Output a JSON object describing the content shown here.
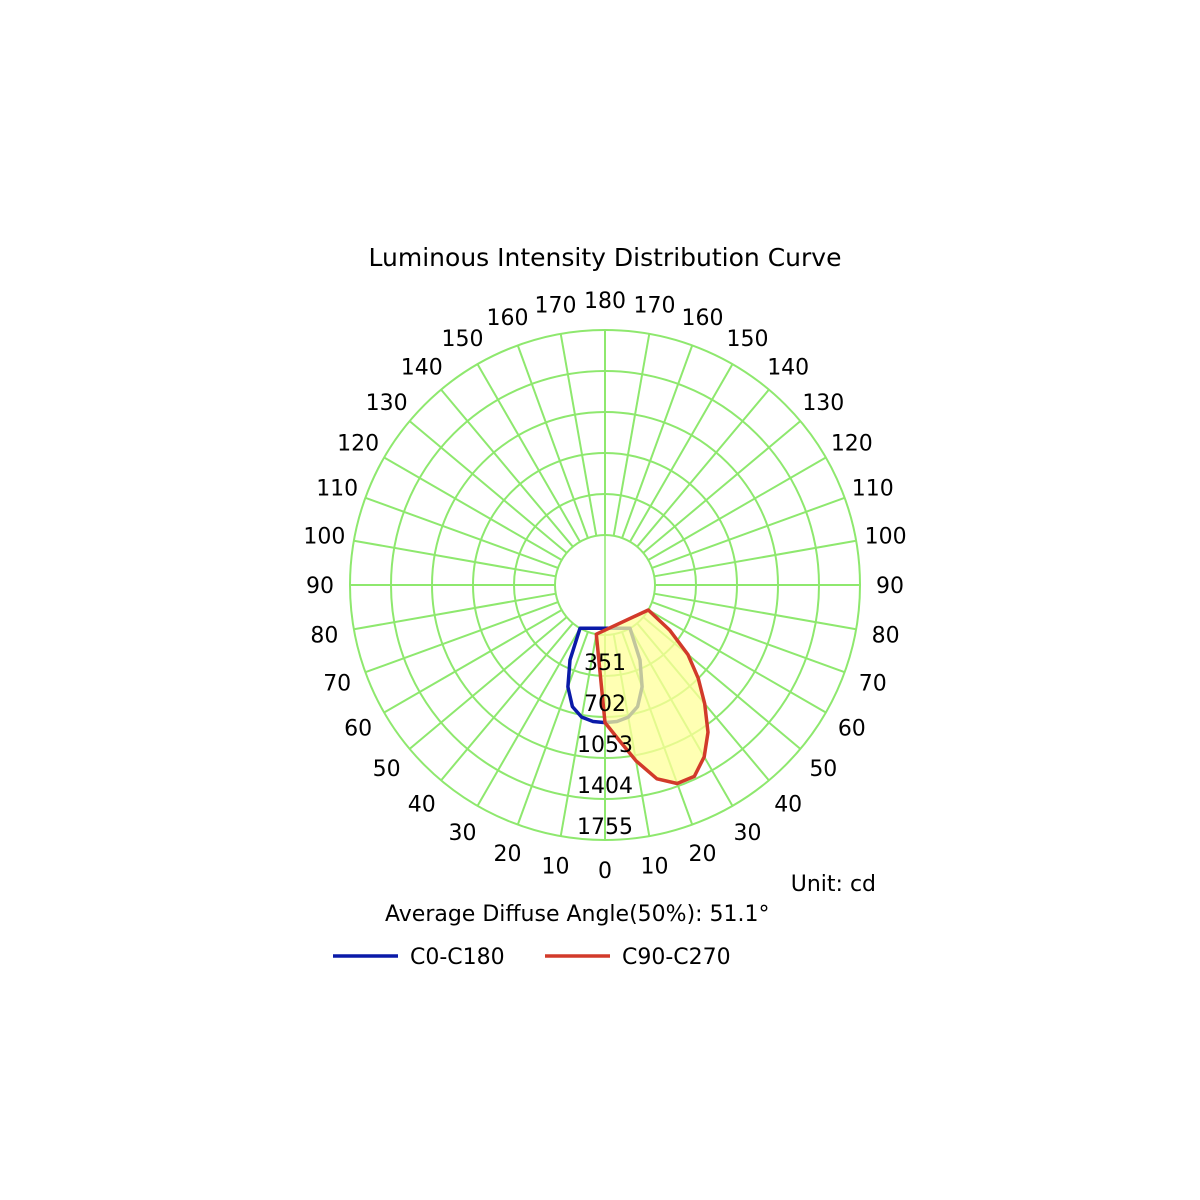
{
  "chart_data": {
    "type": "polar",
    "title": "Luminous Intensity Distribution Curve",
    "unit_label": "Unit: cd",
    "average_angle_label": "Average Diffuse Angle(50%): 51.1°",
    "radial_ticks": [
      351,
      702,
      1053,
      1404,
      1755
    ],
    "r_max": 1755,
    "angle_ticks_left": [
      0,
      10,
      20,
      30,
      40,
      50,
      60,
      70,
      80,
      90,
      100,
      110,
      120,
      130,
      140,
      150,
      160,
      170,
      180
    ],
    "angle_ticks_right": [
      10,
      20,
      30,
      40,
      50,
      60,
      70,
      80,
      90,
      100,
      110,
      120,
      130,
      140,
      150,
      160,
      170
    ],
    "grid": true,
    "legend_position": "bottom",
    "colors": {
      "grid": "#8ee86e",
      "c0": "#0a1aa8",
      "c90": "#d23a2a",
      "fill": "#ffff99"
    },
    "series": [
      {
        "name": "C0-C180",
        "color": "#0a1aa8",
        "angles": [
          -30,
          -25,
          -20,
          -15,
          -10,
          -5,
          0,
          5,
          10,
          15,
          20,
          25,
          30
        ],
        "values": [
          0,
          280,
          500,
          650,
          720,
          745,
          750,
          745,
          720,
          650,
          500,
          280,
          0
        ]
      },
      {
        "name": "C90-C270",
        "color": "#d23a2a",
        "fill": true,
        "angles": [
          -10,
          0,
          5,
          10,
          15,
          20,
          25,
          30,
          35,
          40,
          45,
          50,
          55,
          60
        ],
        "values": [
          0,
          750,
          900,
          1100,
          1290,
          1380,
          1380,
          1270,
          1110,
          900,
          700,
          500,
          250,
          0
        ]
      }
    ]
  }
}
